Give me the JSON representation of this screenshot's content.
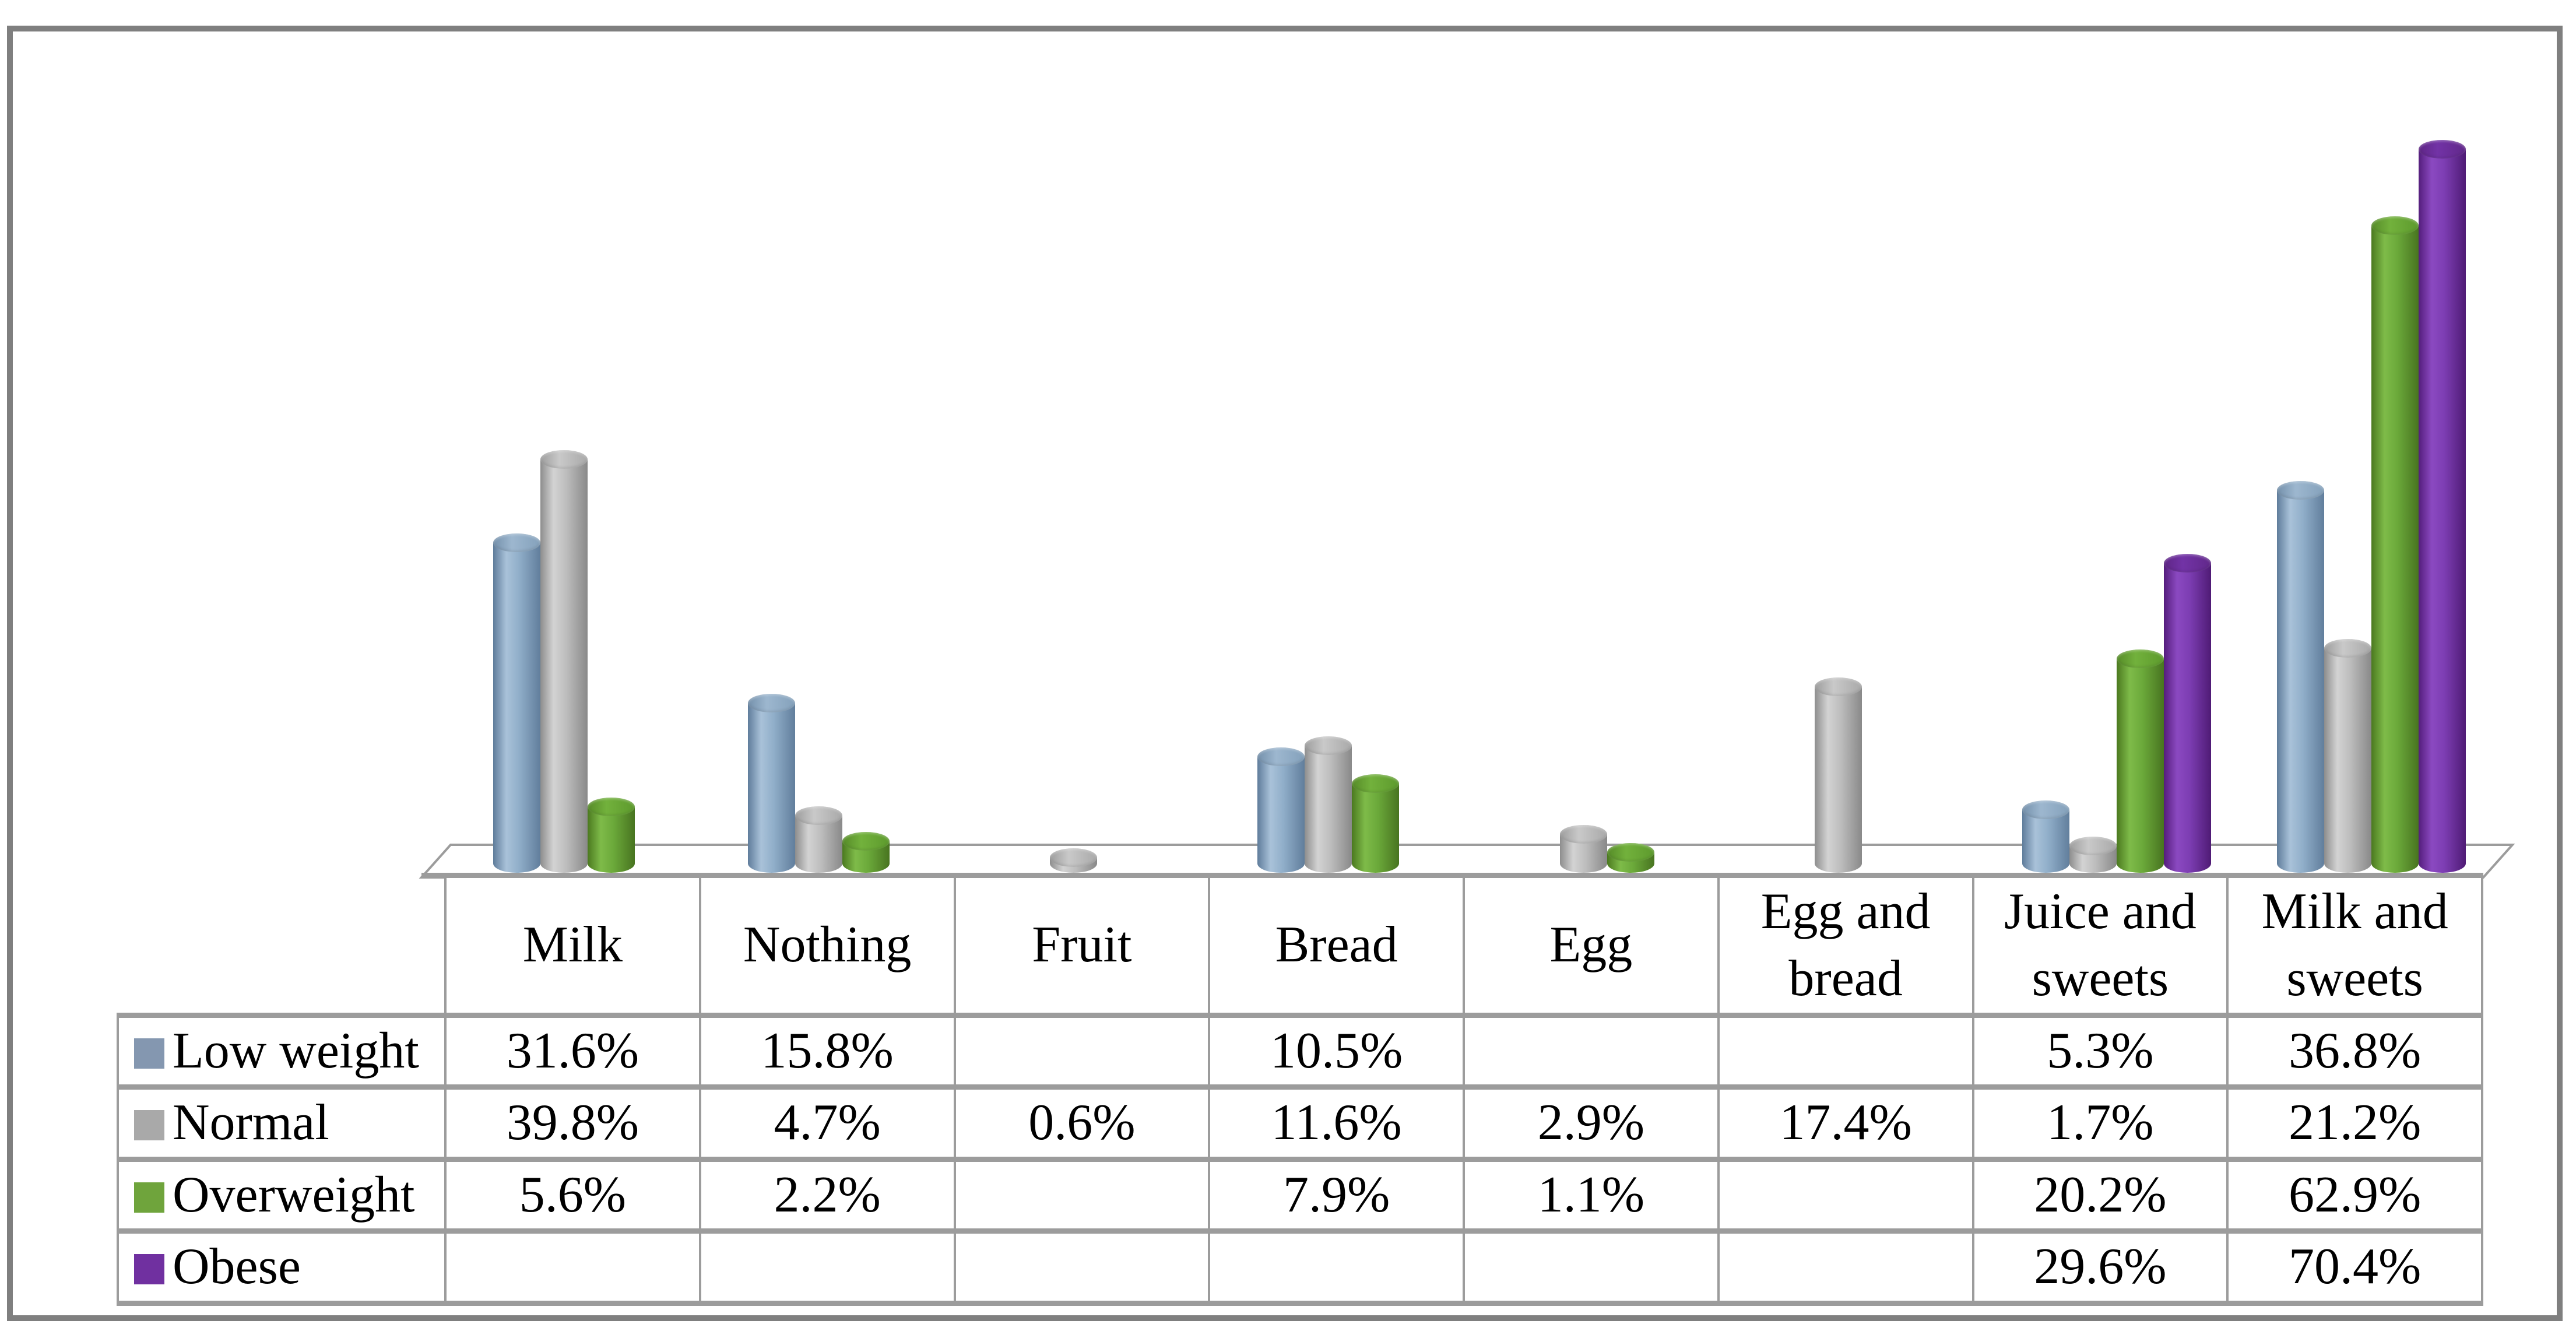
{
  "chart_data": {
    "type": "bar",
    "style": "3d-cylinder",
    "title": "",
    "categories": [
      "Milk",
      "Nothing",
      "Fruit",
      "Bread",
      "Egg",
      "Egg and bread",
      "Juice and sweets",
      "Milk and sweets"
    ],
    "series": [
      {
        "name": "Low weight",
        "color": "#8497b0",
        "values": [
          31.6,
          15.8,
          null,
          10.5,
          null,
          null,
          5.3,
          36.8
        ]
      },
      {
        "name": "Normal",
        "color": "#a9a9a9",
        "values": [
          39.8,
          4.7,
          0.6,
          11.6,
          2.9,
          17.4,
          1.7,
          21.2
        ]
      },
      {
        "name": "Overweight",
        "color": "#6fa43c",
        "values": [
          5.6,
          2.2,
          null,
          7.9,
          1.1,
          null,
          20.2,
          62.9
        ]
      },
      {
        "name": "Obese",
        "color": "#7030a0",
        "values": [
          null,
          null,
          null,
          null,
          null,
          null,
          29.6,
          70.4
        ]
      }
    ],
    "value_suffix": "%",
    "ylim": [
      0,
      75
    ],
    "grid": false,
    "axes_visible": false,
    "legend_position": "left-column-of-data-table"
  },
  "data_table": {
    "category_headers": [
      "Milk",
      "Nothing",
      "Fruit",
      "Bread",
      "Egg",
      "Egg and bread",
      "Juice and sweets",
      "Milk and sweets"
    ],
    "rows": [
      {
        "legend": "Low weight",
        "swatch_color": "#8497b0",
        "cells": [
          "31.6%",
          "15.8%",
          "",
          "10.5%",
          "",
          "",
          "5.3%",
          "36.8%"
        ]
      },
      {
        "legend": "Normal",
        "swatch_color": "#a9a9a9",
        "cells": [
          "39.8%",
          "4.7%",
          "0.6%",
          "11.6%",
          "2.9%",
          "17.4%",
          "1.7%",
          "21.2%"
        ]
      },
      {
        "legend": "Overweight",
        "swatch_color": "#6fa43c",
        "cells": [
          "5.6%",
          "2.2%",
          "",
          "7.9%",
          "1.1%",
          "",
          "20.2%",
          "62.9%"
        ]
      },
      {
        "legend": "Obese",
        "swatch_color": "#7030a0",
        "cells": [
          "",
          "",
          "",
          "",
          "",
          "",
          "29.6%",
          "70.4%"
        ]
      }
    ]
  },
  "frame": {
    "border_color": "#7f7f7f",
    "floor_line_color": "#9c9c9c",
    "background": "#ffffff"
  }
}
